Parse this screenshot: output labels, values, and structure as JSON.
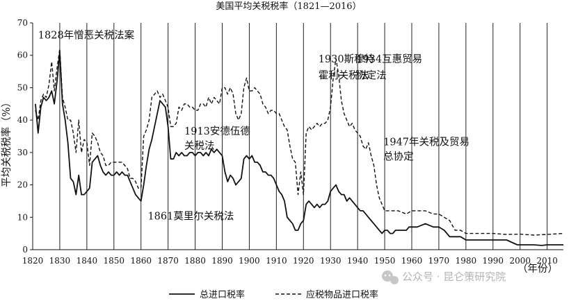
{
  "chart_data": {
    "type": "line",
    "title": "美国平均关税税率（1821—2016）",
    "xlabel": "（年份）",
    "ylabel": "平均关税税率（%）",
    "xlim": [
      1820,
      2016
    ],
    "ylim": [
      0,
      70
    ],
    "xticks": [
      1820,
      1830,
      1840,
      1850,
      1860,
      1870,
      1880,
      1890,
      1900,
      1910,
      1920,
      1930,
      1940,
      1950,
      1960,
      1970,
      1980,
      1990,
      2000,
      2010
    ],
    "yticks": [
      0,
      10,
      20,
      30,
      40,
      50,
      60,
      70
    ],
    "grid": "vertical",
    "legend_position": "bottom",
    "series": [
      {
        "name": "总进口税率",
        "style": "solid",
        "points": [
          [
            1821,
            45
          ],
          [
            1822,
            36
          ],
          [
            1823,
            44
          ],
          [
            1824,
            47
          ],
          [
            1825,
            46
          ],
          [
            1826,
            47
          ],
          [
            1827,
            49
          ],
          [
            1828,
            45
          ],
          [
            1829,
            52
          ],
          [
            1830,
            61
          ],
          [
            1831,
            45
          ],
          [
            1832,
            40
          ],
          [
            1833,
            33
          ],
          [
            1834,
            22
          ],
          [
            1835,
            21
          ],
          [
            1836,
            17
          ],
          [
            1837,
            23
          ],
          [
            1838,
            17
          ],
          [
            1839,
            17
          ],
          [
            1840,
            18
          ],
          [
            1841,
            19
          ],
          [
            1842,
            27
          ],
          [
            1843,
            28
          ],
          [
            1844,
            29
          ],
          [
            1845,
            26
          ],
          [
            1846,
            24
          ],
          [
            1847,
            23
          ],
          [
            1848,
            24
          ],
          [
            1849,
            23
          ],
          [
            1850,
            23
          ],
          [
            1851,
            24
          ],
          [
            1852,
            23
          ],
          [
            1853,
            24
          ],
          [
            1854,
            23
          ],
          [
            1855,
            23
          ],
          [
            1856,
            21
          ],
          [
            1857,
            19
          ],
          [
            1858,
            17
          ],
          [
            1859,
            16
          ],
          [
            1860,
            15
          ],
          [
            1861,
            20
          ],
          [
            1862,
            26
          ],
          [
            1863,
            31
          ],
          [
            1864,
            34
          ],
          [
            1865,
            38
          ],
          [
            1866,
            42
          ],
          [
            1867,
            46
          ],
          [
            1868,
            45
          ],
          [
            1869,
            44
          ],
          [
            1870,
            38
          ],
          [
            1871,
            28
          ],
          [
            1872,
            28
          ],
          [
            1873,
            30
          ],
          [
            1874,
            29
          ],
          [
            1875,
            30
          ],
          [
            1876,
            29
          ],
          [
            1877,
            29
          ],
          [
            1878,
            30
          ],
          [
            1879,
            30
          ],
          [
            1880,
            29
          ],
          [
            1881,
            30
          ],
          [
            1882,
            30
          ],
          [
            1883,
            29
          ],
          [
            1884,
            30
          ],
          [
            1885,
            29
          ],
          [
            1886,
            31
          ],
          [
            1887,
            30
          ],
          [
            1888,
            31
          ],
          [
            1889,
            30
          ],
          [
            1890,
            29
          ],
          [
            1891,
            24
          ],
          [
            1892,
            21
          ],
          [
            1893,
            23
          ],
          [
            1894,
            22
          ],
          [
            1895,
            20
          ],
          [
            1896,
            21
          ],
          [
            1897,
            22
          ],
          [
            1898,
            28
          ],
          [
            1899,
            29
          ],
          [
            1900,
            28
          ],
          [
            1901,
            29
          ],
          [
            1902,
            27
          ],
          [
            1903,
            27
          ],
          [
            1904,
            26
          ],
          [
            1905,
            24
          ],
          [
            1906,
            24
          ],
          [
            1907,
            23
          ],
          [
            1908,
            23
          ],
          [
            1909,
            22
          ],
          [
            1910,
            20
          ],
          [
            1911,
            18
          ],
          [
            1912,
            17
          ],
          [
            1913,
            15
          ],
          [
            1914,
            10
          ],
          [
            1915,
            9
          ],
          [
            1916,
            8
          ],
          [
            1917,
            6
          ],
          [
            1918,
            6
          ],
          [
            1919,
            8
          ],
          [
            1920,
            9
          ],
          [
            1921,
            14
          ],
          [
            1922,
            15
          ],
          [
            1923,
            14
          ],
          [
            1924,
            13
          ],
          [
            1925,
            14
          ],
          [
            1926,
            13
          ],
          [
            1927,
            14
          ],
          [
            1928,
            14
          ],
          [
            1929,
            15
          ],
          [
            1930,
            18
          ],
          [
            1931,
            19
          ],
          [
            1932,
            20
          ],
          [
            1933,
            18
          ],
          [
            1934,
            17
          ],
          [
            1935,
            17
          ],
          [
            1936,
            15
          ],
          [
            1937,
            16
          ],
          [
            1938,
            15
          ],
          [
            1939,
            14
          ],
          [
            1940,
            13
          ],
          [
            1941,
            12
          ],
          [
            1942,
            12
          ],
          [
            1943,
            11
          ],
          [
            1944,
            10
          ],
          [
            1945,
            9
          ],
          [
            1946,
            8
          ],
          [
            1947,
            7
          ],
          [
            1948,
            6
          ],
          [
            1949,
            5
          ],
          [
            1950,
            6
          ],
          [
            1951,
            6
          ],
          [
            1952,
            5
          ],
          [
            1953,
            5
          ],
          [
            1954,
            6
          ],
          [
            1955,
            6
          ],
          [
            1956,
            6
          ],
          [
            1957,
            6
          ],
          [
            1958,
            6
          ],
          [
            1959,
            7
          ],
          [
            1960,
            7
          ],
          [
            1962,
            7
          ],
          [
            1965,
            8
          ],
          [
            1968,
            7
          ],
          [
            1970,
            7
          ],
          [
            1972,
            6
          ],
          [
            1974,
            4
          ],
          [
            1976,
            4
          ],
          [
            1978,
            4
          ],
          [
            1980,
            3
          ],
          [
            1985,
            3
          ],
          [
            1990,
            3
          ],
          [
            1995,
            3
          ],
          [
            1999,
            1.5
          ],
          [
            2005,
            1.5
          ],
          [
            2008,
            1.3
          ],
          [
            2010,
            1.5
          ],
          [
            2016,
            1.5
          ]
        ]
      },
      {
        "name": "应税物品进口税率",
        "style": "dashed",
        "points": [
          [
            1821,
            43
          ],
          [
            1822,
            40
          ],
          [
            1823,
            46
          ],
          [
            1824,
            48
          ],
          [
            1825,
            47
          ],
          [
            1826,
            51
          ],
          [
            1827,
            58
          ],
          [
            1828,
            49
          ],
          [
            1829,
            56
          ],
          [
            1830,
            62
          ],
          [
            1831,
            47
          ],
          [
            1832,
            44
          ],
          [
            1833,
            40
          ],
          [
            1834,
            40
          ],
          [
            1835,
            36
          ],
          [
            1836,
            30
          ],
          [
            1837,
            40
          ],
          [
            1838,
            30
          ],
          [
            1839,
            34
          ],
          [
            1840,
            33
          ],
          [
            1841,
            26
          ],
          [
            1842,
            36
          ],
          [
            1843,
            35
          ],
          [
            1844,
            33
          ],
          [
            1845,
            30
          ],
          [
            1846,
            29
          ],
          [
            1847,
            26
          ],
          [
            1848,
            26
          ],
          [
            1849,
            27
          ],
          [
            1850,
            27
          ],
          [
            1851,
            27
          ],
          [
            1852,
            27
          ],
          [
            1853,
            27
          ],
          [
            1854,
            26
          ],
          [
            1855,
            25
          ],
          [
            1856,
            22
          ],
          [
            1857,
            22
          ],
          [
            1858,
            21
          ],
          [
            1859,
            19
          ],
          [
            1860,
            19
          ],
          [
            1861,
            35
          ],
          [
            1862,
            37
          ],
          [
            1863,
            40
          ],
          [
            1864,
            47
          ],
          [
            1865,
            48
          ],
          [
            1866,
            49
          ],
          [
            1867,
            47
          ],
          [
            1868,
            48
          ],
          [
            1869,
            46
          ],
          [
            1870,
            44
          ],
          [
            1871,
            38
          ],
          [
            1872,
            38
          ],
          [
            1873,
            39
          ],
          [
            1874,
            44
          ],
          [
            1875,
            43
          ],
          [
            1876,
            45
          ],
          [
            1877,
            45
          ],
          [
            1878,
            44
          ],
          [
            1879,
            44
          ],
          [
            1880,
            43
          ],
          [
            1881,
            43
          ],
          [
            1882,
            45
          ],
          [
            1883,
            45
          ],
          [
            1884,
            44
          ],
          [
            1885,
            47
          ],
          [
            1886,
            45
          ],
          [
            1887,
            47
          ],
          [
            1888,
            46
          ],
          [
            1889,
            45
          ],
          [
            1890,
            50
          ],
          [
            1891,
            50
          ],
          [
            1892,
            48
          ],
          [
            1893,
            50
          ],
          [
            1894,
            48
          ],
          [
            1895,
            42
          ],
          [
            1896,
            40
          ],
          [
            1897,
            42
          ],
          [
            1898,
            50
          ],
          [
            1899,
            53
          ],
          [
            1900,
            49
          ],
          [
            1901,
            49
          ],
          [
            1902,
            50
          ],
          [
            1903,
            49
          ],
          [
            1904,
            48
          ],
          [
            1905,
            45
          ],
          [
            1906,
            44
          ],
          [
            1907,
            42
          ],
          [
            1908,
            43
          ],
          [
            1909,
            43
          ],
          [
            1910,
            42
          ],
          [
            1911,
            42
          ],
          [
            1912,
            40
          ],
          [
            1913,
            38
          ],
          [
            1914,
            37
          ],
          [
            1915,
            32
          ],
          [
            1916,
            28
          ],
          [
            1917,
            27
          ],
          [
            1918,
            17
          ],
          [
            1919,
            24
          ],
          [
            1920,
            17
          ],
          [
            1921,
            36
          ],
          [
            1922,
            38
          ],
          [
            1923,
            37
          ],
          [
            1924,
            38
          ],
          [
            1925,
            39
          ],
          [
            1926,
            38
          ],
          [
            1927,
            39
          ],
          [
            1928,
            39
          ],
          [
            1929,
            40
          ],
          [
            1930,
            44
          ],
          [
            1931,
            53
          ],
          [
            1932,
            59
          ],
          [
            1933,
            54
          ],
          [
            1934,
            46
          ],
          [
            1935,
            42
          ],
          [
            1936,
            40
          ],
          [
            1937,
            38
          ],
          [
            1938,
            39
          ],
          [
            1939,
            37
          ],
          [
            1940,
            36
          ],
          [
            1941,
            35
          ],
          [
            1942,
            32
          ],
          [
            1943,
            31
          ],
          [
            1944,
            33
          ],
          [
            1945,
            29
          ],
          [
            1946,
            26
          ],
          [
            1947,
            20
          ],
          [
            1948,
            16
          ],
          [
            1949,
            14
          ],
          [
            1950,
            12
          ],
          [
            1952,
            12
          ],
          [
            1955,
            12
          ],
          [
            1958,
            11
          ],
          [
            1960,
            12
          ],
          [
            1965,
            12
          ],
          [
            1968,
            11
          ],
          [
            1970,
            11
          ],
          [
            1972,
            10
          ],
          [
            1974,
            9
          ],
          [
            1976,
            6
          ],
          [
            1978,
            6
          ],
          [
            1980,
            5
          ],
          [
            1985,
            5
          ],
          [
            1990,
            5
          ],
          [
            1995,
            4.7
          ],
          [
            2000,
            4.8
          ],
          [
            2005,
            4.5
          ],
          [
            2010,
            4.7
          ],
          [
            2016,
            5
          ]
        ]
      }
    ],
    "annotations": [
      {
        "text": "1828年憎恶关税法案",
        "year": 1822,
        "value": 65.2
      },
      {
        "text": "1930斯穆特",
        "year": 1925.5,
        "value": 57.8
      },
      {
        "text": "霍利关税法",
        "year": 1925.5,
        "value": 52.8
      },
      {
        "text": "1934互惠贸易",
        "year": 1939.5,
        "value": 57.8
      },
      {
        "text": "协定法",
        "year": 1939.5,
        "value": 52.8
      },
      {
        "text": "1913安德伍德",
        "year": 1876,
        "value": 35.5
      },
      {
        "text": "关税法",
        "year": 1876,
        "value": 31
      },
      {
        "text": "1947年关税及贸易",
        "year": 1949.5,
        "value": 32.2
      },
      {
        "text": "总协定",
        "year": 1949.5,
        "value": 27.7
      },
      {
        "text": "1861莫里尔关税法",
        "year": 1862.5,
        "value": 9.3
      }
    ]
  },
  "watermark": {
    "icon": "wechat-icon",
    "text": "公众号 · 昆仑策研究院"
  }
}
